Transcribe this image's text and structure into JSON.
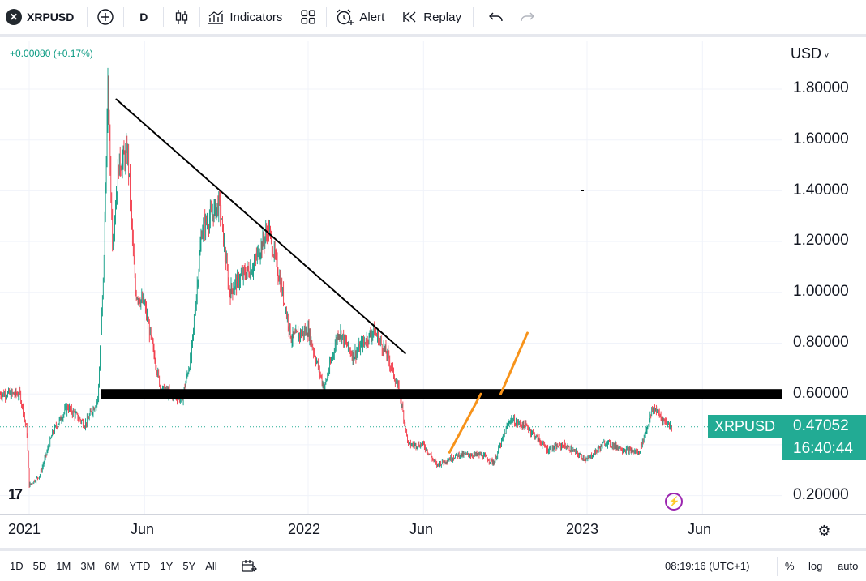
{
  "toolbar": {
    "symbol": "XRPUSD",
    "interval": "D",
    "indicators_label": "Indicators",
    "alert_label": "Alert",
    "replay_label": "Replay"
  },
  "legend": {
    "change": "+0.00080 (+0.17%)"
  },
  "price_axis": {
    "currency": "USD",
    "labels": [
      "1.80000",
      "1.60000",
      "1.40000",
      "1.20000",
      "1.00000",
      "0.80000",
      "0.60000",
      "0.20000"
    ]
  },
  "time_axis": {
    "labels": [
      "2021",
      "Jun",
      "2022",
      "Jun",
      "2023",
      "Jun"
    ]
  },
  "last_price": {
    "symbol": "XRPUSD",
    "price": "0.47052",
    "countdown": "16:40:44"
  },
  "bottom_bar": {
    "ranges": [
      "1D",
      "5D",
      "1M",
      "3M",
      "6M",
      "YTD",
      "1Y",
      "5Y",
      "All"
    ],
    "clock": "08:19:16 (UTC+1)",
    "percent_label": "%",
    "log_label": "log",
    "auto_label": "auto"
  },
  "colors": {
    "up": "#089981",
    "down": "#f23645",
    "accent": "#22ab94",
    "trendline_orange": "#f7931a"
  },
  "chart_data": {
    "type": "candlestick",
    "symbol": "XRPUSD",
    "interval": "D",
    "ylim": [
      0.15,
      1.95
    ],
    "ytick_labels": [
      "1.80000",
      "1.60000",
      "1.40000",
      "1.20000",
      "1.00000",
      "0.80000",
      "0.60000",
      "0.20000"
    ],
    "x_tick_labels": [
      "2021",
      "Jun",
      "2022",
      "Jun",
      "2023",
      "Jun"
    ],
    "last_price": 0.47052,
    "path": [
      [
        "2020-12-20",
        0.6
      ],
      [
        "2020-12-29",
        0.45
      ],
      [
        "2021-01-01",
        0.24
      ],
      [
        "2021-01-15",
        0.28
      ],
      [
        "2021-02-01",
        0.45
      ],
      [
        "2021-02-20",
        0.55
      ],
      [
        "2021-03-15",
        0.48
      ],
      [
        "2021-04-01",
        0.58
      ],
      [
        "2021-04-08",
        1.05
      ],
      [
        "2021-04-14",
        1.8
      ],
      [
        "2021-04-20",
        1.2
      ],
      [
        "2021-04-28",
        1.5
      ],
      [
        "2021-05-10",
        1.55
      ],
      [
        "2021-05-20",
        1.0
      ],
      [
        "2021-06-01",
        0.95
      ],
      [
        "2021-06-22",
        0.62
      ],
      [
        "2021-07-20",
        0.58
      ],
      [
        "2021-08-01",
        0.75
      ],
      [
        "2021-08-15",
        1.25
      ],
      [
        "2021-09-07",
        1.35
      ],
      [
        "2021-09-20",
        1.0
      ],
      [
        "2021-10-01",
        1.05
      ],
      [
        "2021-10-20",
        1.1
      ],
      [
        "2021-11-10",
        1.25
      ],
      [
        "2021-11-25",
        1.05
      ],
      [
        "2021-12-10",
        0.82
      ],
      [
        "2022-01-01",
        0.85
      ],
      [
        "2022-01-22",
        0.62
      ],
      [
        "2022-02-10",
        0.85
      ],
      [
        "2022-03-01",
        0.75
      ],
      [
        "2022-03-28",
        0.85
      ],
      [
        "2022-04-15",
        0.75
      ],
      [
        "2022-05-01",
        0.6
      ],
      [
        "2022-05-12",
        0.4
      ],
      [
        "2022-06-01",
        0.4
      ],
      [
        "2022-06-18",
        0.32
      ],
      [
        "2022-07-15",
        0.36
      ],
      [
        "2022-08-15",
        0.36
      ],
      [
        "2022-09-01",
        0.33
      ],
      [
        "2022-09-22",
        0.5
      ],
      [
        "2022-10-15",
        0.47
      ],
      [
        "2022-11-10",
        0.38
      ],
      [
        "2022-12-01",
        0.4
      ],
      [
        "2023-01-01",
        0.34
      ],
      [
        "2023-01-25",
        0.41
      ],
      [
        "2023-02-20",
        0.38
      ],
      [
        "2023-03-10",
        0.37
      ],
      [
        "2023-03-29",
        0.55
      ],
      [
        "2023-04-10",
        0.5
      ],
      [
        "2023-04-22",
        0.47
      ]
    ],
    "annotations": [
      {
        "type": "trendline",
        "color": "black",
        "from": [
          "2021-04-25",
          1.76
        ],
        "to": [
          "2022-05-08",
          0.76
        ]
      },
      {
        "type": "horizontal_band",
        "color": "black",
        "y": 0.6
      },
      {
        "type": "trendline",
        "color": "orange",
        "from": [
          "2022-07-05",
          0.37
        ],
        "to": [
          "2022-08-15",
          0.6
        ]
      },
      {
        "type": "trendline",
        "color": "orange",
        "from": [
          "2022-09-10",
          0.6
        ],
        "to": [
          "2022-10-15",
          0.84
        ]
      }
    ]
  }
}
